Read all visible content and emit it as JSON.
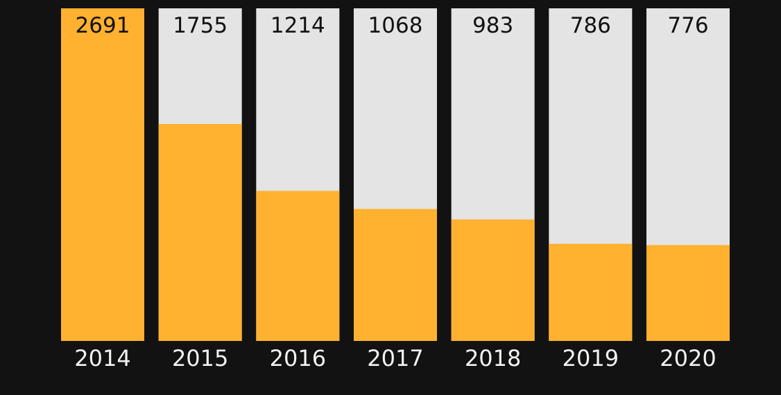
{
  "chart_data": {
    "type": "bar",
    "categories": [
      "2014",
      "2015",
      "2016",
      "2017",
      "2018",
      "2019",
      "2020"
    ],
    "values": [
      2691,
      1755,
      1214,
      1068,
      983,
      786,
      776
    ],
    "data_labels": [
      "2691",
      "1755",
      "1214",
      "1068",
      "983",
      "786",
      "776"
    ],
    "title": "",
    "xlabel": "",
    "ylabel": "",
    "ylim": [
      0,
      2691
    ],
    "grid": false,
    "legend": "none"
  },
  "colors": {
    "background": "#121212",
    "bar_fill": "#ffb12f",
    "bar_track": "#e4e4e4",
    "data_label": "#111111",
    "tick_label": "#f2f2f2"
  }
}
